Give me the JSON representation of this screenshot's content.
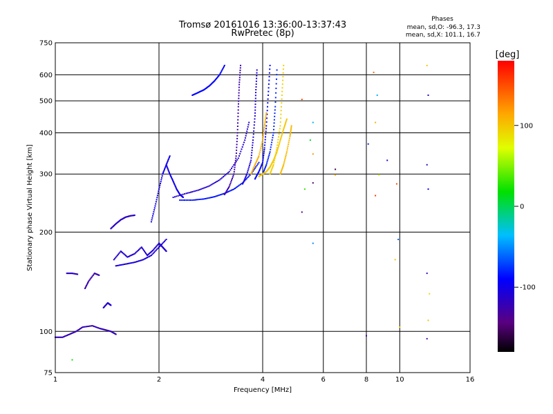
{
  "chart_data": {
    "type": "scatter",
    "title": "Tromsø 20161016 13:36:00-13:37:43",
    "subtitle": "RwPretec (8p)",
    "xlabel": "Frequency [MHz]",
    "ylabel": "Stationary phase Virtual Height [km]",
    "x_scale": "log",
    "y_scale": "log",
    "xlim": [
      1,
      16
    ],
    "ylim": [
      75,
      750
    ],
    "x_ticks": [
      1,
      2,
      4,
      6,
      8,
      10,
      16
    ],
    "y_ticks": [
      75,
      100,
      200,
      300,
      400,
      500,
      600,
      750
    ],
    "grid": true,
    "phases_panel": {
      "title": "Phases",
      "line_o": "mean, sd,O: -96.3, 17.3",
      "line_x": "mean, sd,X: 101.1, 16.7"
    },
    "colorbar": {
      "label": "[deg]",
      "range": [
        -180,
        180
      ],
      "ticks": [
        100,
        0,
        -100
      ],
      "colormap": "rainbow"
    },
    "series": [
      {
        "mode": "O",
        "mean_phase": -96.3,
        "segments": [
          {
            "x": [
              1.0,
              1.05,
              1.1,
              1.15,
              1.2,
              1.28,
              1.35,
              1.4,
              1.45,
              1.5
            ],
            "y": [
              96,
              96,
              98,
              100,
              103,
              104,
              102,
              101,
              100,
              98
            ],
            "phase": -120
          },
          {
            "x": [
              1.08,
              1.12,
              1.16
            ],
            "y": [
              150,
              150,
              149
            ],
            "phase": -115
          },
          {
            "x": [
              1.22,
              1.25,
              1.3,
              1.34
            ],
            "y": [
              135,
              142,
              150,
              148
            ],
            "phase": -125
          },
          {
            "x": [
              1.38,
              1.42,
              1.45
            ],
            "y": [
              118,
              122,
              120
            ],
            "phase": -110
          },
          {
            "x": [
              1.45,
              1.5,
              1.55,
              1.6,
              1.65,
              1.7
            ],
            "y": [
              205,
              212,
              218,
              222,
              224,
              225
            ],
            "phase": -115
          },
          {
            "x": [
              1.48,
              1.55,
              1.62,
              1.7,
              1.78,
              1.85,
              1.92,
              2.0,
              2.05,
              2.1
            ],
            "y": [
              165,
              175,
              168,
              172,
              180,
              170,
              176,
              185,
              180,
              175
            ],
            "phase": -110
          },
          {
            "x": [
              1.5,
              1.6,
              1.7,
              1.8,
              1.9,
              2.0,
              2.1
            ],
            "y": [
              158,
              160,
              162,
              165,
              170,
              180,
              190
            ],
            "phase": -105
          },
          {
            "x": [
              1.9,
              1.95,
              2.0,
              2.05,
              2.1,
              2.15
            ],
            "y": [
              215,
              240,
              270,
              300,
              320,
              340
            ],
            "phase": -100
          },
          {
            "x": [
              2.1,
              2.15,
              2.2,
              2.25,
              2.3,
              2.35
            ],
            "y": [
              320,
              300,
              285,
              270,
              260,
              255
            ],
            "phase": -100
          },
          {
            "x": [
              2.3,
              2.5,
              2.7,
              2.9,
              3.1,
              3.3,
              3.5,
              3.7,
              3.9
            ],
            "y": [
              250,
              250,
              252,
              256,
              262,
              270,
              282,
              300,
              325
            ],
            "phase": -85
          },
          {
            "x": [
              2.2,
              2.4,
              2.6,
              2.8,
              3.0,
              3.2,
              3.4,
              3.55,
              3.65
            ],
            "y": [
              255,
              262,
              268,
              276,
              288,
              305,
              335,
              380,
              430
            ],
            "phase": -110
          },
          {
            "x": [
              3.1,
              3.2,
              3.3,
              3.35,
              3.38,
              3.4,
              3.42,
              3.45
            ],
            "y": [
              260,
              275,
              300,
              340,
              400,
              480,
              560,
              640
            ],
            "phase": -125
          },
          {
            "x": [
              3.5,
              3.6,
              3.7,
              3.75,
              3.8,
              3.82,
              3.85
            ],
            "y": [
              280,
              300,
              330,
              380,
              450,
              530,
              620
            ],
            "phase": -105
          },
          {
            "x": [
              2.5,
              2.6,
              2.7,
              2.8,
              2.9,
              3.0,
              3.1
            ],
            "y": [
              520,
              530,
              540,
              555,
              575,
              600,
              640
            ],
            "phase": -90
          },
          {
            "x": [
              3.8,
              3.9,
              4.0,
              4.05,
              4.1,
              4.15,
              4.2
            ],
            "y": [
              290,
              305,
              325,
              360,
              420,
              520,
              640
            ],
            "phase": -90
          },
          {
            "x": [
              4.0,
              4.1,
              4.2,
              4.3,
              4.35,
              4.4
            ],
            "y": [
              300,
              320,
              350,
              400,
              480,
              620
            ],
            "phase": -80
          }
        ]
      },
      {
        "mode": "X",
        "mean_phase": 101.1,
        "segments": [
          {
            "x": [
              3.7,
              3.8,
              3.9,
              4.0,
              4.05,
              4.1
            ],
            "y": [
              300,
              320,
              340,
              380,
              420,
              460
            ],
            "phase": 110
          },
          {
            "x": [
              3.9,
              4.0,
              4.1,
              4.2,
              4.3,
              4.4,
              4.5,
              4.6,
              4.7
            ],
            "y": [
              295,
              300,
              305,
              315,
              330,
              350,
              380,
              410,
              440
            ],
            "phase": 100
          },
          {
            "x": [
              4.2,
              4.3,
              4.4,
              4.5,
              4.55,
              4.6
            ],
            "y": [
              300,
              320,
              360,
              420,
              520,
              640
            ],
            "phase": 95
          },
          {
            "x": [
              4.5,
              4.6,
              4.7,
              4.8,
              4.85
            ],
            "y": [
              300,
              320,
              350,
              390,
              420
            ],
            "phase": 105
          }
        ]
      }
    ],
    "sparse_points": [
      {
        "x": 5.2,
        "y": 505,
        "phase": 150
      },
      {
        "x": 5.5,
        "y": 380,
        "phase": 10
      },
      {
        "x": 5.6,
        "y": 430,
        "phase": -40
      },
      {
        "x": 5.6,
        "y": 345,
        "phase": 120
      },
      {
        "x": 5.3,
        "y": 270,
        "phase": 30
      },
      {
        "x": 5.2,
        "y": 230,
        "phase": -140
      },
      {
        "x": 5.6,
        "y": 185,
        "phase": -50
      },
      {
        "x": 5.6,
        "y": 282,
        "phase": -150
      },
      {
        "x": 6.5,
        "y": 310,
        "phase": -160
      },
      {
        "x": 6.5,
        "y": 298,
        "phase": 110
      },
      {
        "x": 8.0,
        "y": 97,
        "phase": -130
      },
      {
        "x": 8.1,
        "y": 370,
        "phase": -80
      },
      {
        "x": 8.4,
        "y": 610,
        "phase": 140
      },
      {
        "x": 8.6,
        "y": 520,
        "phase": -40
      },
      {
        "x": 8.5,
        "y": 430,
        "phase": 110
      },
      {
        "x": 8.5,
        "y": 258,
        "phase": 160
      },
      {
        "x": 8.7,
        "y": 298,
        "phase": 70
      },
      {
        "x": 9.2,
        "y": 330,
        "phase": -110
      },
      {
        "x": 9.8,
        "y": 280,
        "phase": 150
      },
      {
        "x": 9.9,
        "y": 190,
        "phase": -60
      },
      {
        "x": 9.7,
        "y": 165,
        "phase": 100
      },
      {
        "x": 10.0,
        "y": 103,
        "phase": 90
      },
      {
        "x": 12.0,
        "y": 640,
        "phase": 100
      },
      {
        "x": 12.1,
        "y": 520,
        "phase": -110
      },
      {
        "x": 12.0,
        "y": 320,
        "phase": -120
      },
      {
        "x": 12.1,
        "y": 270,
        "phase": -100
      },
      {
        "x": 12.0,
        "y": 150,
        "phase": -120
      },
      {
        "x": 12.1,
        "y": 108,
        "phase": 100
      },
      {
        "x": 12.0,
        "y": 95,
        "phase": -130
      },
      {
        "x": 12.2,
        "y": 130,
        "phase": 90
      },
      {
        "x": 1.12,
        "y": 82,
        "phase": 20
      }
    ]
  }
}
